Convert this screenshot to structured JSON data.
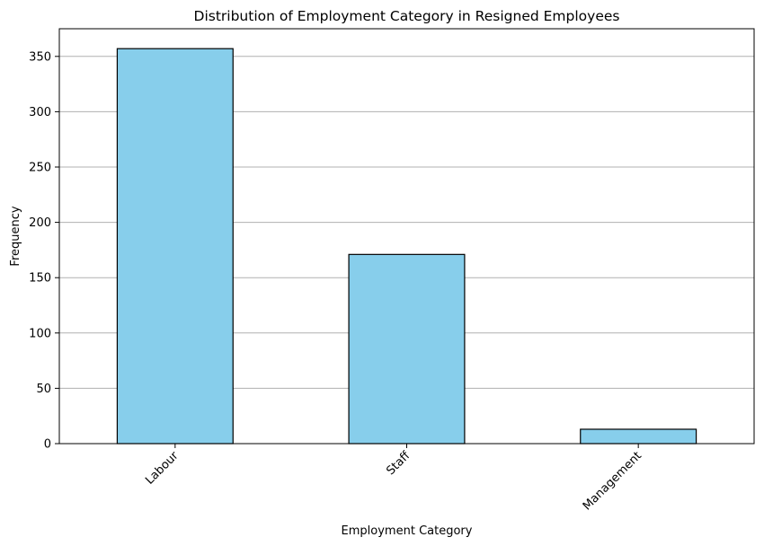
{
  "chart_data": {
    "type": "bar",
    "title": "Distribution of Employment Category in Resigned Employees",
    "xlabel": "Employment Category",
    "ylabel": "Frequency",
    "categories": [
      "Labour",
      "Staff",
      "Management"
    ],
    "values": [
      357,
      171,
      13
    ],
    "ylim": [
      0,
      375
    ],
    "yticks": [
      0,
      50,
      100,
      150,
      200,
      250,
      300,
      350
    ],
    "grid": "y-axis only",
    "bar_color": "#87ceeb",
    "bar_edge_color": "#000000",
    "grid_color": "#b0b0b0",
    "xtick_rotation": 45
  }
}
